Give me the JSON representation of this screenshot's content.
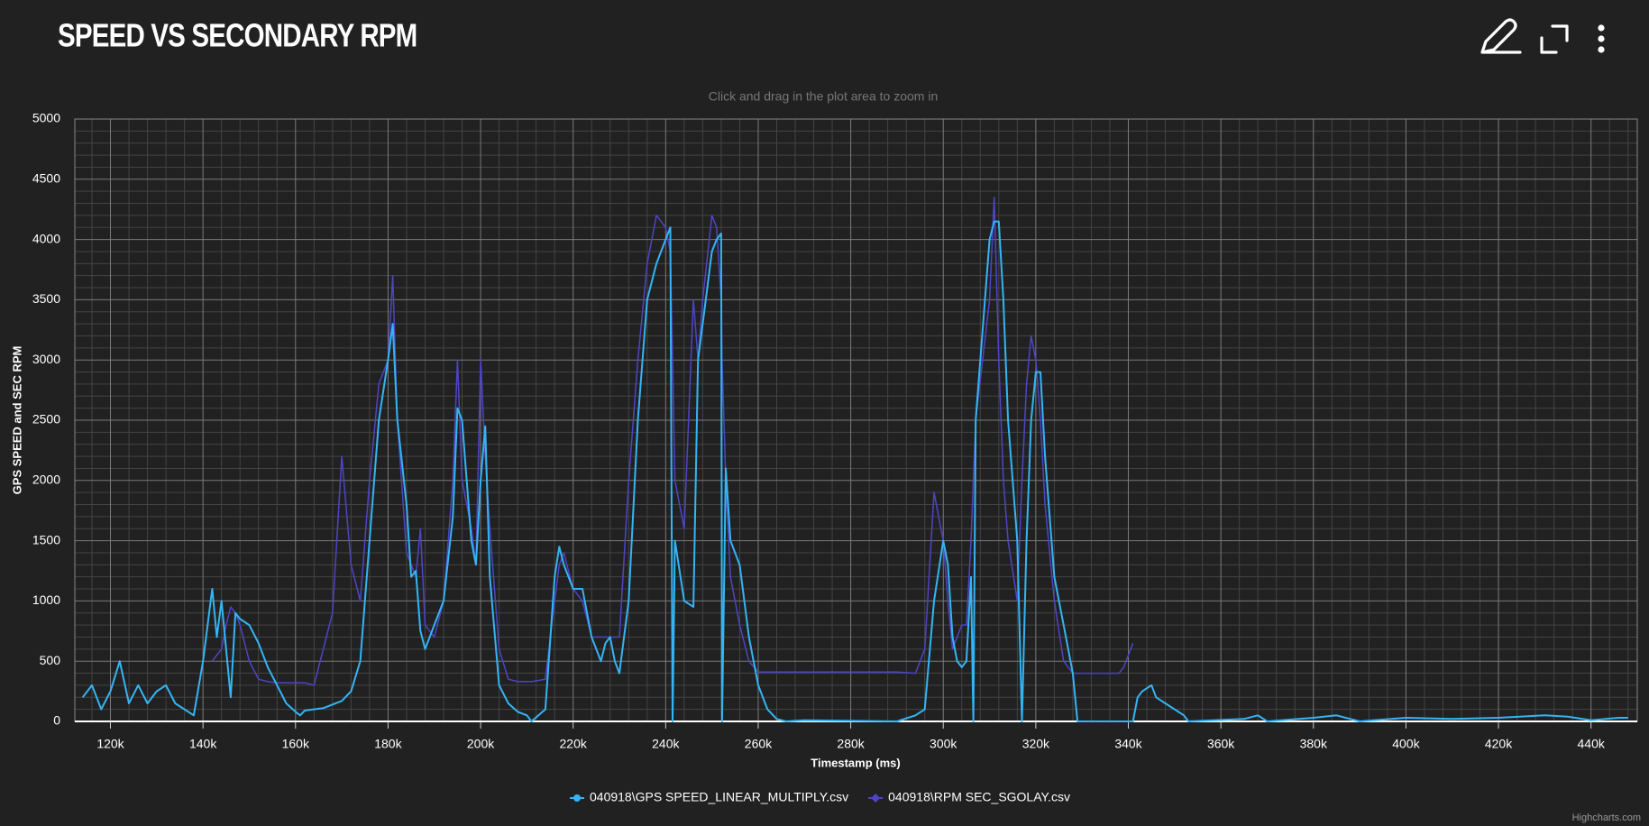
{
  "chart_data": {
    "type": "line",
    "title": "SPEED VS SECONDARY RPM",
    "subtitle": "Click and drag in the plot area to zoom in",
    "x_label": "Timestamp (ms)",
    "y_label": "GPS SPEED and SEC RPM",
    "credits": "Highcharts.com",
    "grid": true,
    "minor_divisions": 5,
    "legend": "bottom",
    "xlim": [
      112300,
      450000
    ],
    "ylim": [
      0,
      5000
    ],
    "yticks": [
      0,
      500,
      1000,
      1500,
      2000,
      2500,
      3000,
      3500,
      4000,
      4500,
      5000
    ],
    "xticks": [
      {
        "value": 120000,
        "label": "120k"
      },
      {
        "value": 140000,
        "label": "140k"
      },
      {
        "value": 160000,
        "label": "160k"
      },
      {
        "value": 180000,
        "label": "180k"
      },
      {
        "value": 200000,
        "label": "200k"
      },
      {
        "value": 220000,
        "label": "220k"
      },
      {
        "value": 240000,
        "label": "240k"
      },
      {
        "value": 260000,
        "label": "260k"
      },
      {
        "value": 280000,
        "label": "280k"
      },
      {
        "value": 300000,
        "label": "300k"
      },
      {
        "value": 320000,
        "label": "320k"
      },
      {
        "value": 340000,
        "label": "340k"
      },
      {
        "value": 360000,
        "label": "360k"
      },
      {
        "value": 380000,
        "label": "380k"
      },
      {
        "value": 400000,
        "label": "400k"
      },
      {
        "value": 420000,
        "label": "420k"
      },
      {
        "value": 440000,
        "label": "440k"
      }
    ],
    "x": [
      114000,
      116000,
      118000,
      120000,
      122000,
      124000,
      126000,
      128000,
      130000,
      132000,
      134000,
      136000,
      138000,
      140000,
      141000,
      142000,
      143000,
      144000,
      145000,
      146000,
      147000,
      148000,
      150000,
      152000,
      154000,
      156000,
      158000,
      160000,
      161000,
      162000,
      164000,
      166000,
      168000,
      170000,
      172000,
      174000,
      176000,
      178000,
      180000,
      181000,
      182000,
      184000,
      185000,
      186000,
      187000,
      188000,
      189000,
      190000,
      192000,
      194000,
      195000,
      196000,
      198000,
      199000,
      200000,
      201000,
      202000,
      204000,
      206000,
      208000,
      210000,
      211000,
      214000,
      216000,
      217000,
      218000,
      220000,
      222000,
      224000,
      226000,
      227000,
      228000,
      229000,
      230000,
      232000,
      234000,
      236000,
      238000,
      240000,
      241000,
      241500,
      242000,
      244000,
      246000,
      247000,
      248000,
      250000,
      251000,
      252000,
      252200,
      253000,
      254000,
      256000,
      258000,
      260000,
      262000,
      264000,
      266000,
      270000,
      290000,
      294000,
      296000,
      298000,
      300000,
      301000,
      302000,
      303000,
      304000,
      305000,
      306000,
      306500,
      307000,
      310000,
      311000,
      312000,
      313000,
      314000,
      316000,
      317000,
      318000,
      319000,
      320000,
      321000,
      322000,
      324000,
      326000,
      328000,
      329000,
      330000,
      338000,
      339000,
      341000,
      342000,
      343000,
      345000,
      346000,
      348000,
      350000,
      352000,
      353000,
      365000,
      368000,
      370000,
      380000,
      385000,
      390000,
      400000,
      410000,
      420000,
      430000,
      435000,
      440000,
      446000,
      448000
    ],
    "series": [
      {
        "name": "040918\\GPS SPEED_LINEAR_MULTIPLY.csv",
        "color": "#33b5f5",
        "marker": "circle",
        "values": [
          200,
          300,
          100,
          250,
          500,
          150,
          300,
          150,
          250,
          300,
          150,
          100,
          50,
          500,
          800,
          1100,
          700,
          1000,
          600,
          200,
          900,
          850,
          800,
          650,
          450,
          300,
          150,
          80,
          50,
          90,
          100,
          110,
          140,
          170,
          250,
          500,
          1500,
          2500,
          3000,
          3300,
          2500,
          1800,
          1200,
          1250,
          750,
          600,
          700,
          800,
          1000,
          1700,
          2600,
          2500,
          1500,
          1300,
          2000,
          2450,
          1200,
          300,
          150,
          80,
          50,
          0,
          100,
          1200,
          1450,
          1300,
          1100,
          1100,
          700,
          500,
          650,
          700,
          500,
          400,
          1000,
          2500,
          3500,
          3800,
          4000,
          4100,
          0,
          1500,
          1000,
          950,
          3000,
          3300,
          3900,
          4000,
          4050,
          0,
          2100,
          1500,
          1300,
          700,
          300,
          100,
          20,
          0,
          10,
          0,
          50,
          100,
          1000,
          1500,
          1300,
          700,
          500,
          450,
          500,
          1200,
          0,
          2500,
          4000,
          4150,
          4150,
          3500,
          2500,
          1500,
          0,
          1500,
          2500,
          2900,
          2900,
          2200,
          1200,
          800,
          400,
          0,
          0,
          0,
          0,
          0,
          200,
          250,
          300,
          200,
          150,
          100,
          50,
          0,
          20,
          50,
          0,
          30,
          50,
          0,
          30,
          20,
          30,
          50,
          40,
          10,
          30,
          30
        ]
      },
      {
        "name": "040918\\RPM SEC_SGOLAY.csv",
        "color": "#4e45c6",
        "marker": "diamond",
        "values": [
          null,
          null,
          null,
          null,
          null,
          null,
          null,
          null,
          null,
          null,
          null,
          null,
          null,
          null,
          null,
          500,
          550,
          600,
          800,
          950,
          900,
          800,
          500,
          350,
          330,
          320,
          320,
          320,
          320,
          320,
          300,
          600,
          900,
          2200,
          1300,
          1000,
          2000,
          2800,
          3000,
          3700,
          2500,
          1400,
          1300,
          1200,
          1600,
          800,
          750,
          700,
          1000,
          2000,
          3000,
          2000,
          1600,
          1300,
          3000,
          2200,
          1600,
          600,
          350,
          330,
          330,
          330,
          350,
          1000,
          1300,
          1400,
          1100,
          1000,
          700,
          700,
          700,
          700,
          700,
          700,
          2000,
          3000,
          3800,
          4200,
          4100,
          3900,
          3000,
          2000,
          1600,
          3500,
          3000,
          3500,
          4200,
          4100,
          3500,
          3000,
          2000,
          1200,
          800,
          500,
          410,
          410,
          410,
          410,
          410,
          410,
          400,
          600,
          1900,
          1500,
          1000,
          600,
          700,
          800,
          800,
          1500,
          2000,
          2500,
          3500,
          4350,
          3000,
          2000,
          1500,
          1000,
          2000,
          2800,
          3200,
          3000,
          2500,
          1800,
          1000,
          500,
          400,
          400,
          400,
          400,
          450,
          650,
          null,
          null,
          null,
          null,
          null,
          null,
          null,
          null,
          null,
          null,
          null,
          null,
          null,
          null,
          null,
          null,
          null,
          null,
          null,
          null,
          null,
          null
        ]
      }
    ]
  }
}
